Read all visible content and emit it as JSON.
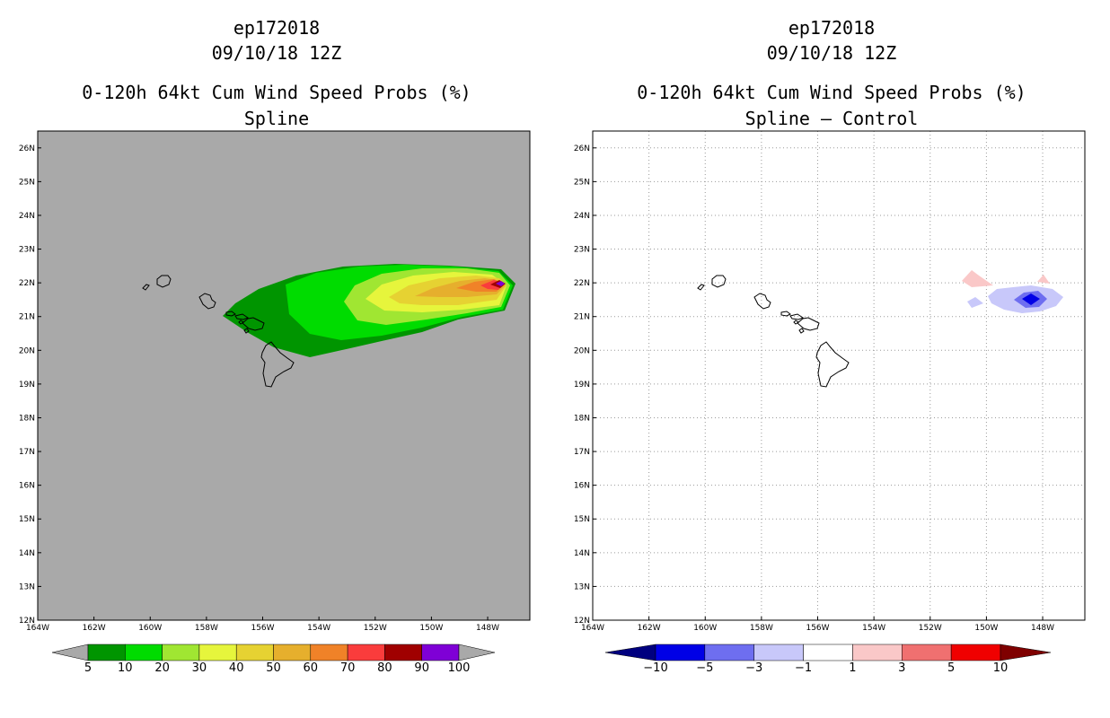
{
  "panels": [
    {
      "id": "left",
      "storm_id": "ep172018",
      "datetime": "09/10/18 12Z",
      "title": "0-120h 64kt Cum Wind Speed Probs (%)",
      "subtitle": "Spline",
      "background": "#a9a9a9",
      "colorbar": {
        "labels": [
          "5",
          "10",
          "20",
          "30",
          "40",
          "50",
          "60",
          "70",
          "80",
          "90",
          "100"
        ],
        "colors": [
          "#009500",
          "#00dc00",
          "#a0e632",
          "#e6f53c",
          "#e6d232",
          "#e6af2d",
          "#f08228",
          "#fa3c3c",
          "#a00000",
          "#7f00d6"
        ],
        "under_color": "#a9a9a9",
        "over_color": "#a9a9a9"
      }
    },
    {
      "id": "right",
      "storm_id": "ep172018",
      "datetime": "09/10/18 12Z",
      "title": "0-120h 64kt Cum Wind Speed Probs (%)",
      "subtitle": "Spline – Control",
      "background": "#ffffff",
      "colorbar": {
        "labels": [
          "−10",
          "−5",
          "−3",
          "−1",
          "1",
          "3",
          "5",
          "10"
        ],
        "colors": [
          "#0000e6",
          "#6e6ef0",
          "#c8c8fa",
          "#ffffff",
          "#fac8c8",
          "#f07070",
          "#f00000"
        ],
        "under_color": "#00007f",
        "over_color": "#7f0000"
      }
    }
  ],
  "map": {
    "lon_range": [
      -164,
      -146.5
    ],
    "lat_range": [
      12,
      26.5
    ],
    "lon_ticks": [
      "164W",
      "162W",
      "160W",
      "158W",
      "156W",
      "154W",
      "152W",
      "150W",
      "148W"
    ],
    "lat_ticks": [
      "12N",
      "13N",
      "14N",
      "15N",
      "16N",
      "17N",
      "18N",
      "19N",
      "20N",
      "21N",
      "22N",
      "23N",
      "24N",
      "25N",
      "26N"
    ]
  }
}
